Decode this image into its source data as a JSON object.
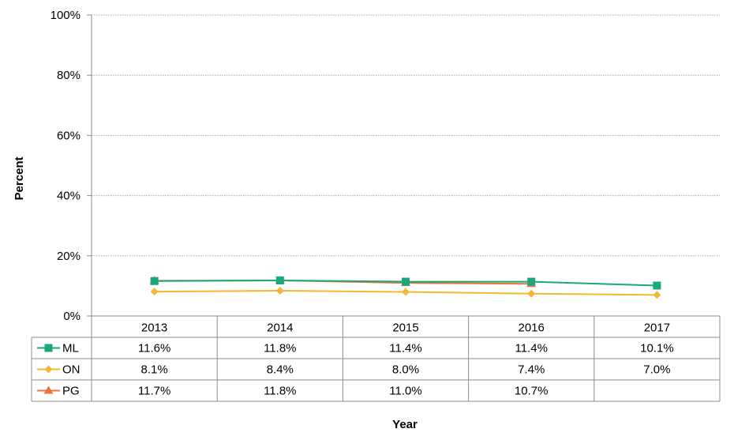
{
  "chart_data": {
    "type": "line",
    "title": "",
    "xlabel": "Year",
    "ylabel": "Percent",
    "ylim": [
      0,
      100
    ],
    "yticks": [
      0,
      20,
      40,
      60,
      80,
      100
    ],
    "ytick_labels": [
      "0%",
      "20%",
      "40%",
      "60%",
      "80%",
      "100%"
    ],
    "grid": true,
    "legend": "data-table",
    "categories": [
      "2013",
      "2014",
      "2015",
      "2016",
      "2017"
    ],
    "series": [
      {
        "name": "ML",
        "color": "#1aa87a",
        "marker": "square",
        "values": [
          11.6,
          11.8,
          11.4,
          11.4,
          10.1
        ],
        "labels": [
          "11.6%",
          "11.8%",
          "11.4%",
          "11.4%",
          "10.1%"
        ]
      },
      {
        "name": "ON",
        "color": "#f5b731",
        "marker": "diamond",
        "values": [
          8.1,
          8.4,
          8.0,
          7.4,
          7.0
        ],
        "labels": [
          "8.1%",
          "8.4%",
          "8.0%",
          "7.4%",
          "7.0%"
        ]
      },
      {
        "name": "PG",
        "color": "#f0703c",
        "marker": "triangle",
        "values": [
          11.7,
          11.8,
          11.0,
          10.7,
          null
        ],
        "labels": [
          "11.7%",
          "11.8%",
          "11.0%",
          "10.7%",
          ""
        ]
      }
    ]
  }
}
